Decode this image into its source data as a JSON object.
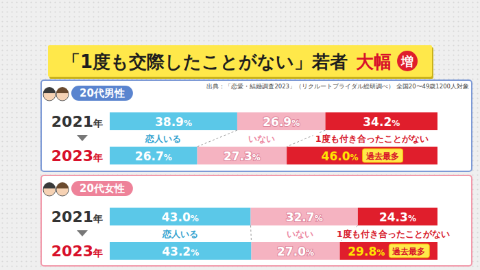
{
  "header": {
    "title": "「1度も交際したことがない」若者",
    "emphasis": "大幅",
    "badge": "増",
    "source": "出典：「恋愛・結婚調査2023」（リクルートブライダル総研調べ） 全国20〜49歳1200人対象"
  },
  "chart_data": [
    {
      "type": "bar",
      "orientation": "horizontal",
      "stacked": true,
      "data_labels": true,
      "tick_labels": false,
      "title": "20代男性",
      "annotation": "過去最多",
      "xlim": [
        0,
        100
      ],
      "categories": [
        "2021年",
        "2023年"
      ],
      "series": [
        {
          "name": "恋人いる",
          "color": "#5bc8e8",
          "values": [
            38.9,
            26.7
          ],
          "value_labels": [
            "38.9%",
            "26.7%"
          ]
        },
        {
          "name": "いない",
          "color": "#f5b3c1",
          "values": [
            26.9,
            27.3
          ],
          "value_labels": [
            "26.9%",
            "27.3%"
          ]
        },
        {
          "name": "1度も付き合ったことがない",
          "color": "#e01e2c",
          "values": [
            34.2,
            46.0
          ],
          "value_labels": [
            "34.2%",
            "46.0%"
          ]
        }
      ]
    },
    {
      "type": "bar",
      "orientation": "horizontal",
      "stacked": true,
      "data_labels": true,
      "tick_labels": false,
      "title": "20代女性",
      "annotation": "過去最多",
      "xlim": [
        0,
        100
      ],
      "categories": [
        "2021年",
        "2023年"
      ],
      "series": [
        {
          "name": "恋人いる",
          "color": "#5bc8e8",
          "values": [
            43.0,
            43.2
          ],
          "value_labels": [
            "43.0%",
            "43.2%"
          ]
        },
        {
          "name": "いない",
          "color": "#f5b3c1",
          "values": [
            32.7,
            27.0
          ],
          "value_labels": [
            "32.7%",
            "27.0%"
          ]
        },
        {
          "name": "1度も付き合ったことがない",
          "color": "#e01e2c",
          "values": [
            24.3,
            29.8
          ],
          "value_labels": [
            "24.3%",
            "29.8%"
          ]
        }
      ]
    }
  ]
}
